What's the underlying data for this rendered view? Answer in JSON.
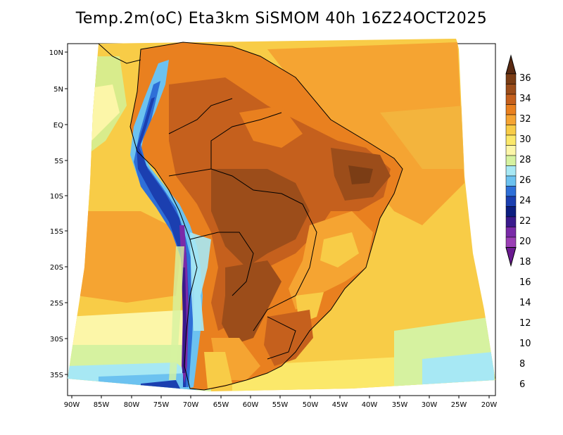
{
  "title": "Temp.2m(oC) Eta3km SiSMOM 40h 16Z24OCT2025",
  "lat_labels": [
    "10N",
    "5N",
    "EQ",
    "5S",
    "10S",
    "15S",
    "20S",
    "25S",
    "30S",
    "35S"
  ],
  "lon_labels": [
    "90W",
    "85W",
    "80W",
    "75W",
    "70W",
    "65W",
    "60W",
    "55W",
    "50W",
    "45W",
    "40W",
    "35W",
    "30W",
    "25W",
    "20W"
  ],
  "colorbar": {
    "unit": "oC",
    "labels": [
      "36",
      "34",
      "32",
      "30",
      "28",
      "26",
      "24",
      "22",
      "20",
      "18",
      "16",
      "14",
      "12",
      "10",
      "8",
      "6"
    ],
    "colors": [
      "#5a2a12",
      "#7b3d15",
      "#9c4d1a",
      "#c5601d",
      "#e9801f",
      "#f5a432",
      "#f8cc47",
      "#fbe86a",
      "#fcf6a8",
      "#d6f2a0",
      "#a7e8f4",
      "#6cc2f0",
      "#2e6fd8",
      "#1b3fb0",
      "#0c1e80",
      "#3a1a8c",
      "#7a2aa8",
      "#9b3fb5",
      "#6a1a90"
    ]
  }
}
